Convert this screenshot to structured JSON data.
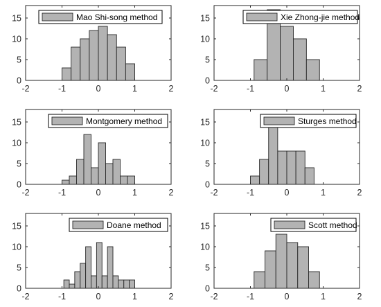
{
  "style": {
    "bar_fill": "#b3b3b3",
    "bar_edge": "#262626",
    "axis_color": "#262626",
    "legend_edge": "#000000"
  },
  "chart_data": [
    {
      "type": "bar",
      "legend": "Mao Shi-song method",
      "legend_position": "top",
      "xlim": [
        -2,
        2
      ],
      "ylim": [
        0,
        18
      ],
      "xticks": [
        "-2",
        "-1",
        "0",
        "1",
        "2"
      ],
      "yticks": [
        "0",
        "5",
        "10",
        "15"
      ],
      "bin_edges": [
        -1.0,
        -0.75,
        -0.5,
        -0.25,
        0.0,
        0.25,
        0.5,
        0.75,
        1.0
      ],
      "values": [
        3,
        8,
        10,
        12,
        13,
        11,
        8,
        4
      ],
      "grid": false
    },
    {
      "type": "bar",
      "legend": "Xie Zhong-jie method",
      "legend_position": "top-right",
      "xlim": [
        -2,
        2
      ],
      "ylim": [
        0,
        18
      ],
      "xticks": [
        "-2",
        "-1",
        "0",
        "1",
        "2"
      ],
      "yticks": [
        "0",
        "5",
        "10",
        "15"
      ],
      "bin_edges": [
        -0.9,
        -0.54,
        -0.18,
        0.18,
        0.54,
        0.9
      ],
      "values": [
        5,
        17,
        13,
        10,
        5
      ],
      "grid": false
    },
    {
      "type": "bar",
      "legend": "Montgomery method",
      "legend_position": "top-right",
      "xlim": [
        -2,
        2
      ],
      "ylim": [
        0,
        18
      ],
      "xticks": [
        "-2",
        "-1",
        "0",
        "1",
        "2"
      ],
      "yticks": [
        "0",
        "5",
        "10",
        "15"
      ],
      "bin_edges": [
        -1.0,
        -0.8,
        -0.6,
        -0.4,
        -0.2,
        0.0,
        0.2,
        0.4,
        0.6,
        0.8,
        1.0
      ],
      "values": [
        1,
        2,
        6,
        12,
        4,
        10,
        5,
        6,
        2,
        2
      ],
      "grid": false
    },
    {
      "type": "bar",
      "legend": "Sturges method",
      "legend_position": "top-right",
      "xlim": [
        -2,
        2
      ],
      "ylim": [
        0,
        18
      ],
      "xticks": [
        "-2",
        "-1",
        "0",
        "1",
        "2"
      ],
      "yticks": [
        "0",
        "5",
        "10",
        "15"
      ],
      "bin_edges": [
        -1.0,
        -0.75,
        -0.5,
        -0.25,
        0.0,
        0.25,
        0.5,
        0.75,
        1.0
      ],
      "values": [
        2,
        6,
        14,
        8,
        8,
        8,
        4,
        0
      ],
      "grid": false
    },
    {
      "type": "bar",
      "legend": "Doane method",
      "legend_position": "top-right",
      "xlim": [
        -2,
        2
      ],
      "ylim": [
        0,
        18
      ],
      "xticks": [
        "-2",
        "-1",
        "0",
        "1",
        "2"
      ],
      "yticks": [
        "0",
        "5",
        "10",
        "15"
      ],
      "bin_edges": [
        -0.95,
        -0.8,
        -0.65,
        -0.5,
        -0.35,
        -0.2,
        -0.05,
        0.1,
        0.25,
        0.4,
        0.55,
        0.7,
        0.85,
        1.0
      ],
      "values": [
        2,
        1,
        4,
        6,
        10,
        3,
        11,
        3,
        10,
        3,
        2,
        2,
        2
      ],
      "grid": false
    },
    {
      "type": "bar",
      "legend": "Scott method",
      "legend_position": "top-right",
      "xlim": [
        -2,
        2
      ],
      "ylim": [
        0,
        18
      ],
      "xticks": [
        "-2",
        "-1",
        "0",
        "1",
        "2"
      ],
      "yticks": [
        "0",
        "5",
        "10",
        "15"
      ],
      "bin_edges": [
        -0.9,
        -0.6,
        -0.3,
        0.0,
        0.3,
        0.6,
        0.9
      ],
      "values": [
        4,
        9,
        13,
        11,
        10,
        4
      ],
      "grid": false
    }
  ]
}
